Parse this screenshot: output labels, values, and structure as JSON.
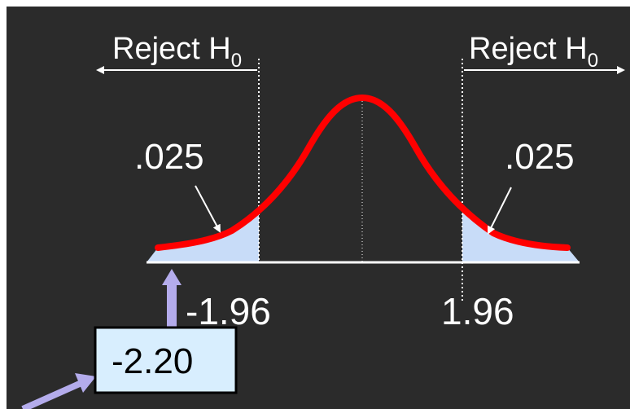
{
  "reject_left": {
    "text": "Reject H",
    "subscript": "0"
  },
  "reject_right": {
    "text": "Reject H",
    "subscript": "0"
  },
  "tail_left": ".025",
  "tail_right": ".025",
  "critical_left": "-1.96",
  "critical_right": "1.96",
  "test_statistic": "-2.20",
  "colors": {
    "background": "#2b2b2b",
    "curve": "#ff0000",
    "tail_fill": "#c8dcf8",
    "arrow_purple": "#b4acec",
    "box_fill": "#d8eefe",
    "text": "#ffffff"
  }
}
